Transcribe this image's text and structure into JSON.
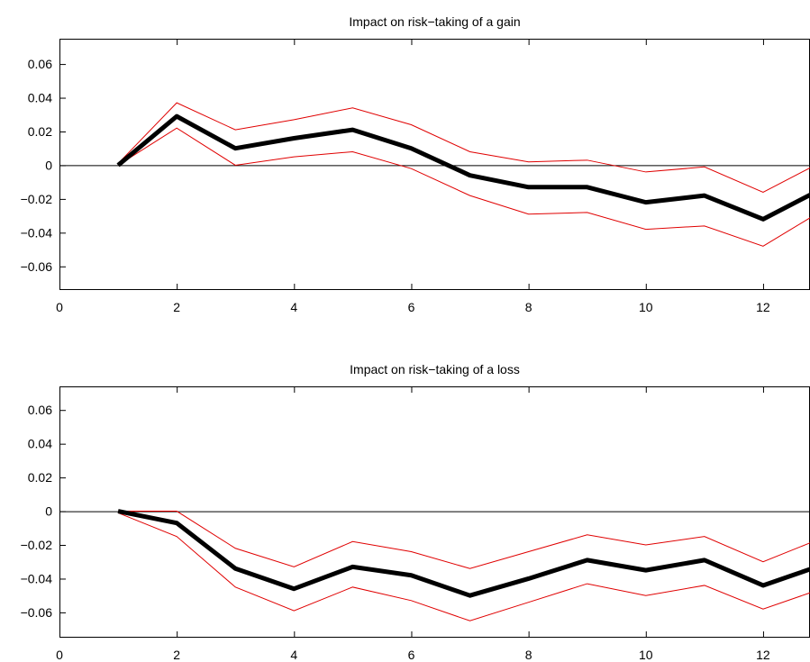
{
  "colors": {
    "estimate": "#000000",
    "band": "#e00000",
    "zero_line": "#000000"
  },
  "chart_data": [
    {
      "type": "line",
      "title": "Impact on risk−taking of a gain",
      "xlabel": "",
      "ylabel": "",
      "xlim": [
        0,
        12.8
      ],
      "ylim": [
        -0.074,
        0.075
      ],
      "grid": false,
      "x_ticks": [
        0,
        2,
        4,
        6,
        8,
        10,
        12
      ],
      "y_ticks": [
        -0.06,
        -0.04,
        -0.02,
        0,
        0.02,
        0.04,
        0.06
      ],
      "x_tick_labels": [
        "0",
        "2",
        "4",
        "6",
        "8",
        "10",
        "12"
      ],
      "y_tick_labels": [
        "−0.06",
        "−0.04",
        "−0.02",
        "0",
        "0.02",
        "0.04",
        "0.06"
      ],
      "x": [
        1,
        2,
        3,
        4,
        5,
        6,
        7,
        8,
        9,
        10,
        11,
        12,
        13
      ],
      "series": [
        {
          "role": "upper",
          "values": [
            0.001,
            0.037,
            0.021,
            0.027,
            0.034,
            0.024,
            0.008,
            0.002,
            0.003,
            -0.004,
            -0.001,
            -0.016,
            0.002
          ]
        },
        {
          "role": "estimate",
          "values": [
            0.0,
            0.029,
            0.01,
            0.016,
            0.021,
            0.01,
            -0.006,
            -0.013,
            -0.013,
            -0.022,
            -0.018,
            -0.032,
            -0.014
          ]
        },
        {
          "role": "lower",
          "values": [
            0.0,
            0.022,
            0.0,
            0.005,
            0.008,
            -0.002,
            -0.018,
            -0.029,
            -0.028,
            -0.038,
            -0.036,
            -0.048,
            -0.027
          ]
        }
      ]
    },
    {
      "type": "line",
      "title": "Impact on risk−taking of a loss",
      "xlabel": "",
      "ylabel": "",
      "xlim": [
        0,
        12.8
      ],
      "ylim": [
        -0.075,
        0.074
      ],
      "grid": false,
      "x_ticks": [
        0,
        2,
        4,
        6,
        8,
        10,
        12
      ],
      "y_ticks": [
        -0.06,
        -0.04,
        -0.02,
        0,
        0.02,
        0.04,
        0.06
      ],
      "x_tick_labels": [
        "0",
        "2",
        "4",
        "6",
        "8",
        "10",
        "12"
      ],
      "y_tick_labels": [
        "−0.06",
        "−0.04",
        "−0.02",
        "0",
        "0.02",
        "0.04",
        "0.06"
      ],
      "x": [
        1,
        2,
        3,
        4,
        5,
        6,
        7,
        8,
        9,
        10,
        11,
        12,
        13
      ],
      "series": [
        {
          "role": "upper",
          "values": [
            0.0,
            0.0,
            -0.022,
            -0.033,
            -0.018,
            -0.024,
            -0.034,
            -0.024,
            -0.014,
            -0.02,
            -0.015,
            -0.03,
            -0.016
          ]
        },
        {
          "role": "estimate",
          "values": [
            0.0,
            -0.007,
            -0.034,
            -0.046,
            -0.033,
            -0.038,
            -0.05,
            -0.04,
            -0.029,
            -0.035,
            -0.029,
            -0.044,
            -0.032
          ]
        },
        {
          "role": "lower",
          "values": [
            -0.001,
            -0.015,
            -0.045,
            -0.059,
            -0.045,
            -0.053,
            -0.065,
            -0.054,
            -0.043,
            -0.05,
            -0.044,
            -0.058,
            -0.046
          ]
        }
      ]
    }
  ]
}
